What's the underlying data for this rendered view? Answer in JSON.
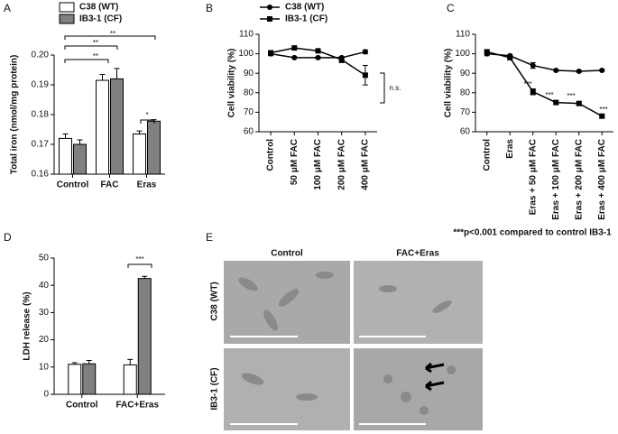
{
  "chart_data": [
    {
      "type": "bar",
      "label": "A",
      "ylabel": "Total iron (nmol/mg protein)",
      "categories": [
        "Control",
        "FAC",
        "Eras"
      ],
      "series": [
        {
          "name": "C38 (WT)",
          "color": "#ffffff",
          "values": [
            0.172,
            0.1915,
            0.1735
          ],
          "errors": [
            0.0015,
            0.002,
            0.001
          ]
        },
        {
          "name": "IB3-1 (CF)",
          "color": "#808080",
          "values": [
            0.17,
            0.192,
            0.1778
          ],
          "errors": [
            0.0015,
            0.0035,
            0.0005
          ]
        }
      ],
      "ylim": [
        0.16,
        0.2
      ],
      "yticks": [
        0.16,
        0.17,
        0.18,
        0.19,
        {
          "value": 0.2,
          "label": "0.20"
        }
      ],
      "annotations": [
        "**",
        "**",
        "**",
        "*"
      ]
    },
    {
      "type": "line",
      "label": "B",
      "ylabel": "Cell viability (%)",
      "categories": [
        "Control",
        "50 μM FAC",
        "100 μM FAC",
        "200 μM FAC",
        "400 μM FAC"
      ],
      "series": [
        {
          "name": "C38 (WT)",
          "color": "#000000",
          "values": [
            100,
            98,
            98,
            98,
            101
          ],
          "errors": [
            1,
            0.5,
            0.5,
            0.5,
            1
          ]
        },
        {
          "name": "IB3-1 (CF)",
          "color": "#000000",
          "values": [
            100.5,
            103,
            101.5,
            97,
            89
          ],
          "errors": [
            1,
            0.5,
            1,
            1.5,
            5
          ]
        }
      ],
      "ylim": [
        60,
        110
      ],
      "yticks": [
        60,
        70,
        80,
        90,
        100,
        110
      ],
      "annotations": [
        "n.s."
      ]
    },
    {
      "type": "line",
      "label": "C",
      "ylabel": "Cell viability (%)",
      "categories": [
        "Control",
        "Eras",
        "Eras + 50 μM FAC",
        "Eras + 100 μM FAC",
        "Eras + 200 μM FAC",
        "Eras + 400 μM FAC"
      ],
      "series": [
        {
          "name": "C38 (WT)",
          "color": "#000000",
          "values": [
            100,
            99,
            94,
            91.5,
            91,
            91.5
          ],
          "errors": [
            1,
            0.5,
            1.5,
            0.5,
            0.5,
            0.5
          ]
        },
        {
          "name": "IB3-1 (CF)",
          "color": "#000000",
          "values": [
            101,
            98,
            80.5,
            75,
            74.5,
            68
          ],
          "errors": [
            1,
            0.5,
            1.5,
            1,
            1,
            1
          ]
        }
      ],
      "ylim": [
        60,
        110
      ],
      "yticks": [
        60,
        70,
        80,
        90,
        100,
        110
      ],
      "annotations": [
        "***",
        "***",
        "***",
        "***"
      ],
      "footnote": "***p<0.001 compared to control IB3-1"
    },
    {
      "type": "bar",
      "label": "D",
      "ylabel": "LDH release (%)",
      "categories": [
        "Control",
        "FAC+Eras"
      ],
      "series": [
        {
          "name": "C38 (WT)",
          "color": "#ffffff",
          "values": [
            11,
            10.8
          ],
          "errors": [
            0.6,
            2
          ]
        },
        {
          "name": "IB3-1 (CF)",
          "color": "#808080",
          "values": [
            11.2,
            42.5
          ],
          "errors": [
            1.2,
            0.8
          ]
        }
      ],
      "ylim": [
        0,
        50
      ],
      "yticks": [
        0,
        10,
        20,
        30,
        40,
        50
      ],
      "annotations": [
        "***"
      ]
    }
  ],
  "panel_e": {
    "label": "E",
    "columns": [
      "Control",
      "FAC+Eras"
    ],
    "rows": [
      "C38 (WT)",
      "IB3-1 (CF)"
    ]
  }
}
